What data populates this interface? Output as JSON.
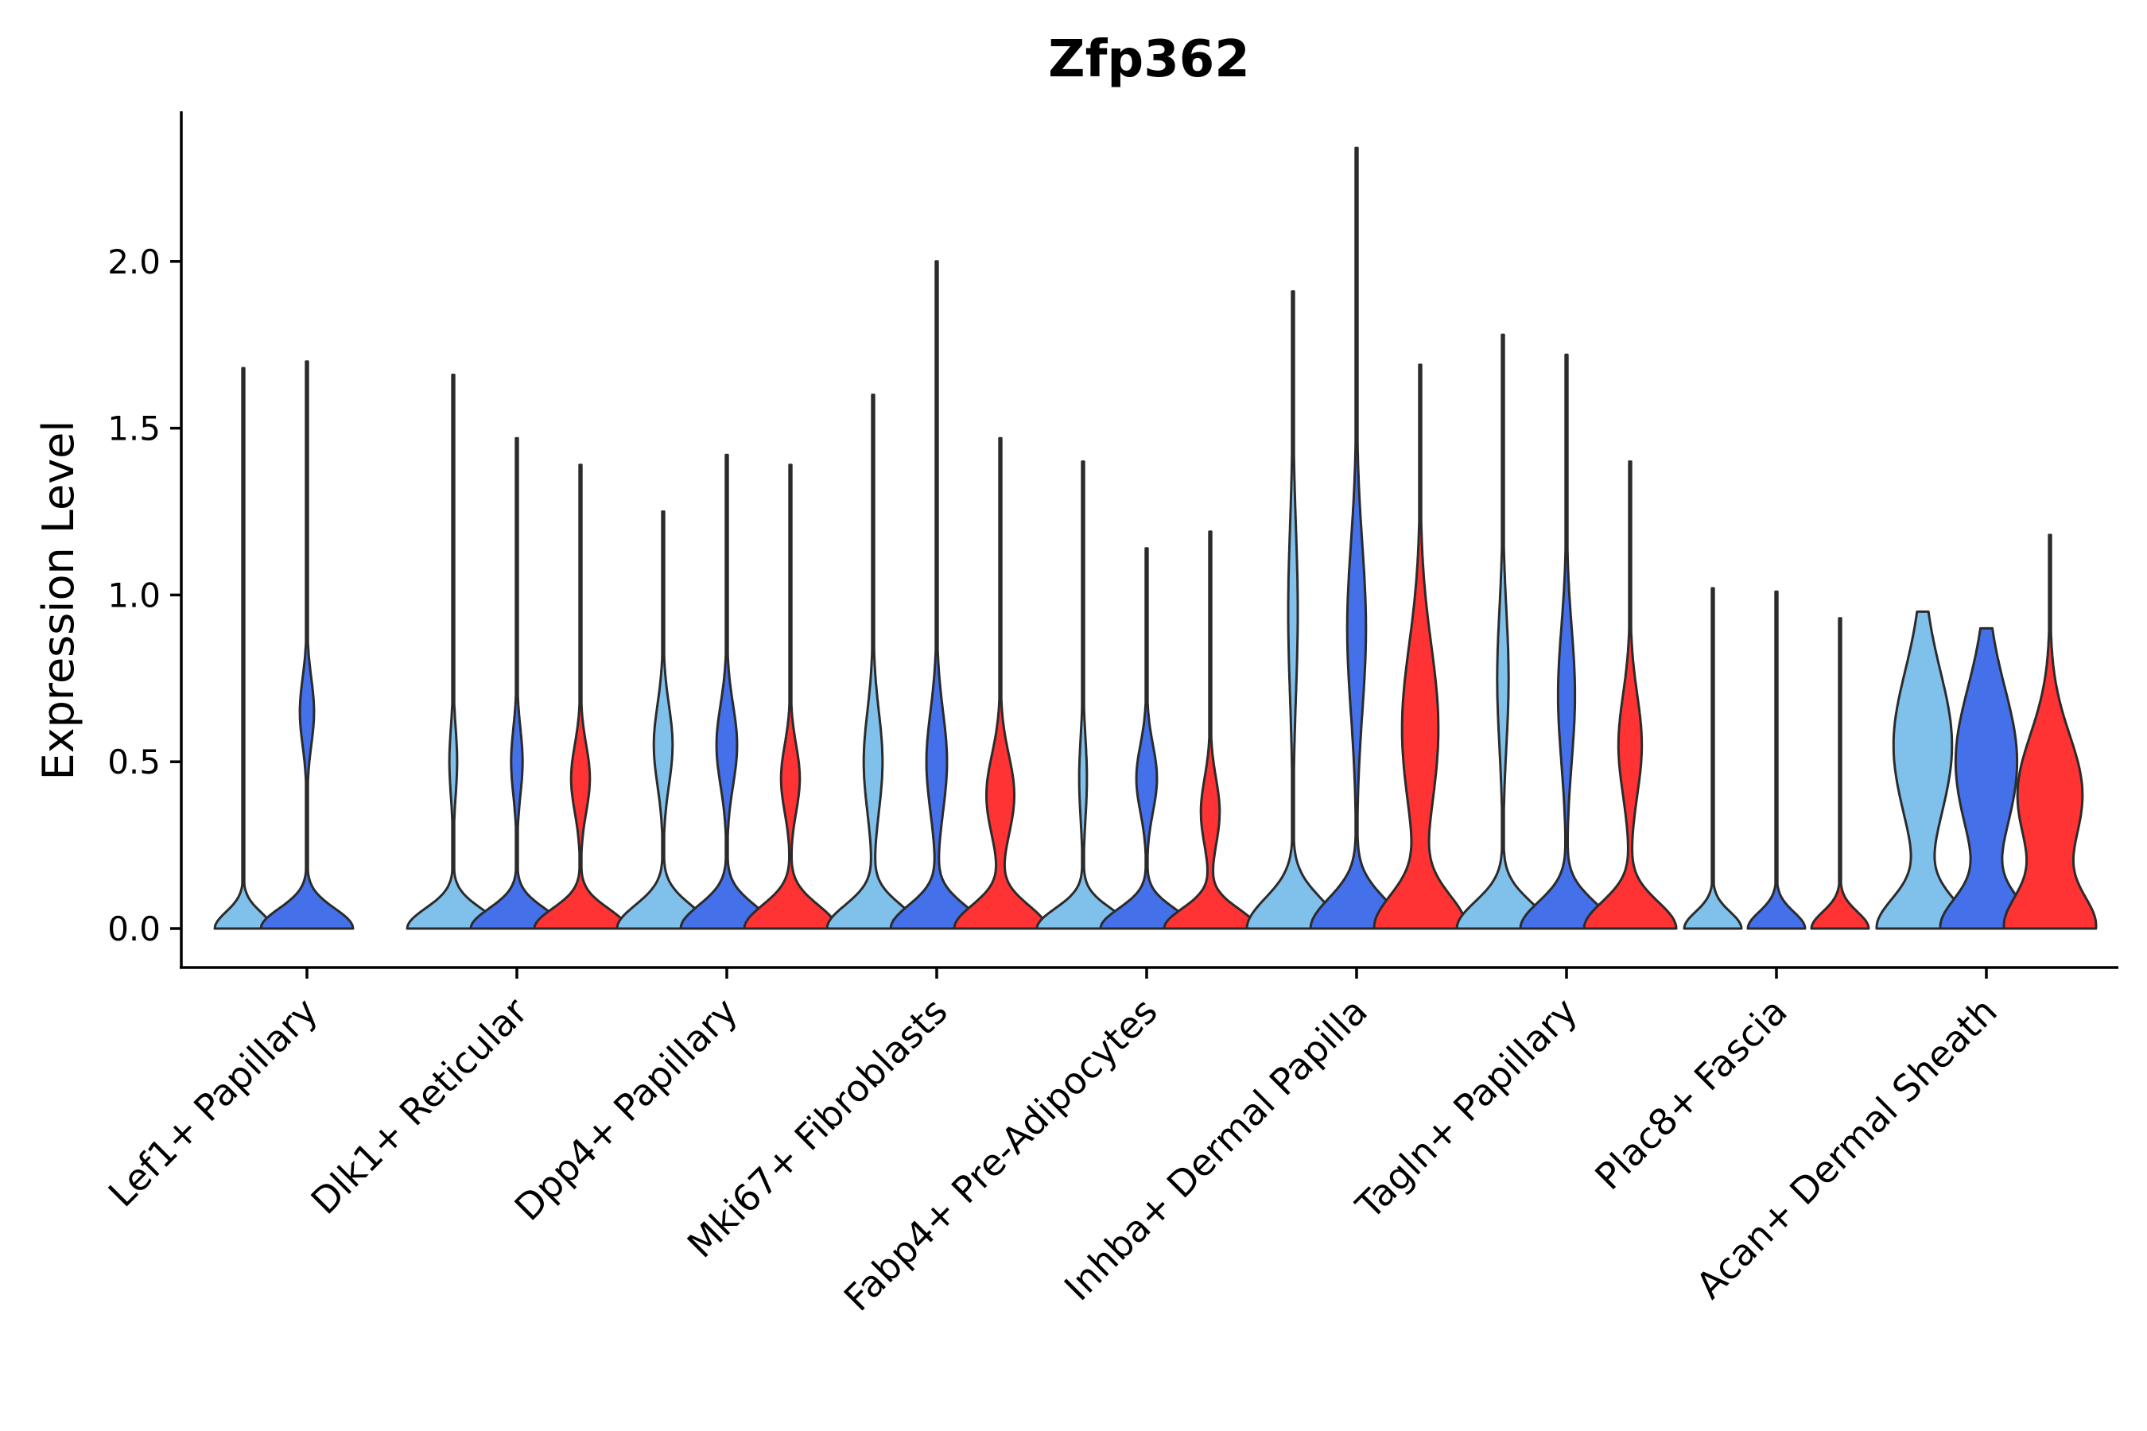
{
  "chart_data": {
    "type": "violin",
    "title": "Zfp362",
    "xlabel": "",
    "ylabel": "Expression Level",
    "ylim": [
      -0.12,
      2.45
    ],
    "yticks": [
      "0.0",
      "0.5",
      "1.0",
      "1.5",
      "2.0"
    ],
    "series": [
      {
        "name": "condition 1",
        "color": "#80c1ec"
      },
      {
        "name": "condition 2",
        "color": "#4470ea"
      },
      {
        "name": "condition 3",
        "color": "#ff3333"
      }
    ],
    "categories": [
      {
        "label": "Lef1+ Papillary",
        "violins": [
          {
            "series": 0,
            "max": 1.68,
            "bw": 0.62,
            "modes": [
              [
                0.0,
                1.0,
                0.05
              ]
            ]
          },
          {
            "series": 1,
            "max": 1.7,
            "bw": 1.0,
            "modes": [
              [
                0.0,
                1.0,
                0.06
              ],
              [
                0.65,
                0.15,
                0.1
              ]
            ]
          },
          null
        ]
      },
      {
        "label": "Dlk1+ Reticular",
        "violins": [
          {
            "series": 0,
            "max": 1.66,
            "bw": 1.0,
            "modes": [
              [
                0.0,
                1.0,
                0.06
              ],
              [
                0.5,
                0.08,
                0.1
              ]
            ]
          },
          {
            "series": 1,
            "max": 1.47,
            "bw": 1.0,
            "modes": [
              [
                0.0,
                1.0,
                0.06
              ],
              [
                0.5,
                0.12,
                0.1
              ]
            ]
          },
          {
            "series": 2,
            "max": 1.39,
            "bw": 1.0,
            "modes": [
              [
                0.0,
                1.0,
                0.06
              ],
              [
                0.45,
                0.2,
                0.1
              ]
            ]
          }
        ]
      },
      {
        "label": "Dpp4+ Papillary",
        "violins": [
          {
            "series": 0,
            "max": 1.25,
            "bw": 1.0,
            "modes": [
              [
                0.0,
                1.0,
                0.07
              ],
              [
                0.55,
                0.2,
                0.12
              ]
            ]
          },
          {
            "series": 1,
            "max": 1.42,
            "bw": 1.0,
            "modes": [
              [
                0.0,
                1.0,
                0.07
              ],
              [
                0.55,
                0.22,
                0.12
              ]
            ]
          },
          {
            "series": 2,
            "max": 1.39,
            "bw": 1.0,
            "modes": [
              [
                0.0,
                1.0,
                0.07
              ],
              [
                0.45,
                0.2,
                0.1
              ]
            ]
          }
        ]
      },
      {
        "label": "Mki67+ Fibroblasts",
        "violins": [
          {
            "series": 0,
            "max": 1.6,
            "bw": 1.0,
            "modes": [
              [
                0.0,
                1.0,
                0.07
              ],
              [
                0.5,
                0.2,
                0.15
              ]
            ]
          },
          {
            "series": 1,
            "max": 2.0,
            "bw": 1.0,
            "modes": [
              [
                0.0,
                1.0,
                0.07
              ],
              [
                0.5,
                0.22,
                0.15
              ]
            ]
          },
          {
            "series": 2,
            "max": 1.47,
            "bw": 1.0,
            "modes": [
              [
                0.0,
                1.0,
                0.07
              ],
              [
                0.4,
                0.3,
                0.12
              ]
            ]
          }
        ]
      },
      {
        "label": "Fabp4+ Pre-Adipocytes",
        "violins": [
          {
            "series": 0,
            "max": 1.4,
            "bw": 1.0,
            "modes": [
              [
                0.0,
                1.0,
                0.06
              ],
              [
                0.45,
                0.08,
                0.12
              ]
            ]
          },
          {
            "series": 1,
            "max": 1.14,
            "bw": 1.0,
            "modes": [
              [
                0.0,
                1.0,
                0.06
              ],
              [
                0.45,
                0.22,
                0.1
              ]
            ]
          },
          {
            "series": 2,
            "max": 1.19,
            "bw": 1.0,
            "modes": [
              [
                0.0,
                1.0,
                0.06
              ],
              [
                0.35,
                0.2,
                0.1
              ]
            ]
          }
        ]
      },
      {
        "label": "Inhba+ Dermal Papilla",
        "violins": [
          {
            "series": 0,
            "max": 1.91,
            "bw": 1.0,
            "modes": [
              [
                0.0,
                1.0,
                0.09
              ],
              [
                0.95,
                0.1,
                0.25
              ]
            ]
          },
          {
            "series": 1,
            "max": 2.34,
            "bw": 1.0,
            "modes": [
              [
                0.0,
                1.0,
                0.09
              ],
              [
                0.9,
                0.2,
                0.25
              ]
            ]
          },
          {
            "series": 2,
            "max": 1.69,
            "bw": 1.0,
            "modes": [
              [
                0.0,
                1.0,
                0.1
              ],
              [
                0.6,
                0.4,
                0.25
              ]
            ]
          }
        ]
      },
      {
        "label": "Tagln+ Papillary",
        "violins": [
          {
            "series": 0,
            "max": 1.78,
            "bw": 1.0,
            "modes": [
              [
                0.0,
                1.0,
                0.08
              ],
              [
                0.75,
                0.12,
                0.2
              ]
            ]
          },
          {
            "series": 1,
            "max": 1.72,
            "bw": 1.0,
            "modes": [
              [
                0.0,
                1.0,
                0.08
              ],
              [
                0.7,
                0.18,
                0.2
              ]
            ]
          },
          {
            "series": 2,
            "max": 1.4,
            "bw": 1.0,
            "modes": [
              [
                0.0,
                1.0,
                0.08
              ],
              [
                0.55,
                0.25,
                0.15
              ]
            ]
          }
        ]
      },
      {
        "label": "Plac8+ Fascia",
        "violins": [
          {
            "series": 0,
            "max": 1.02,
            "bw": 0.62,
            "modes": [
              [
                0.0,
                1.0,
                0.05
              ]
            ]
          },
          {
            "series": 1,
            "max": 1.01,
            "bw": 0.62,
            "modes": [
              [
                0.0,
                1.0,
                0.05
              ]
            ]
          },
          {
            "series": 2,
            "max": 0.93,
            "bw": 0.62,
            "modes": [
              [
                0.0,
                1.0,
                0.05
              ]
            ]
          }
        ]
      },
      {
        "label": "Acan+ Dermal Sheath",
        "violins": [
          {
            "series": 0,
            "max": 0.95,
            "bw": 1.0,
            "modes": [
              [
                0.0,
                1.0,
                0.09
              ],
              [
                0.55,
                0.65,
                0.22
              ]
            ]
          },
          {
            "series": 1,
            "max": 0.9,
            "bw": 1.0,
            "modes": [
              [
                0.0,
                1.0,
                0.09
              ],
              [
                0.5,
                0.7,
                0.22
              ]
            ]
          },
          {
            "series": 2,
            "max": 1.18,
            "bw": 1.0,
            "modes": [
              [
                0.0,
                1.0,
                0.1
              ],
              [
                0.4,
                0.75,
                0.18
              ]
            ]
          }
        ]
      }
    ]
  }
}
